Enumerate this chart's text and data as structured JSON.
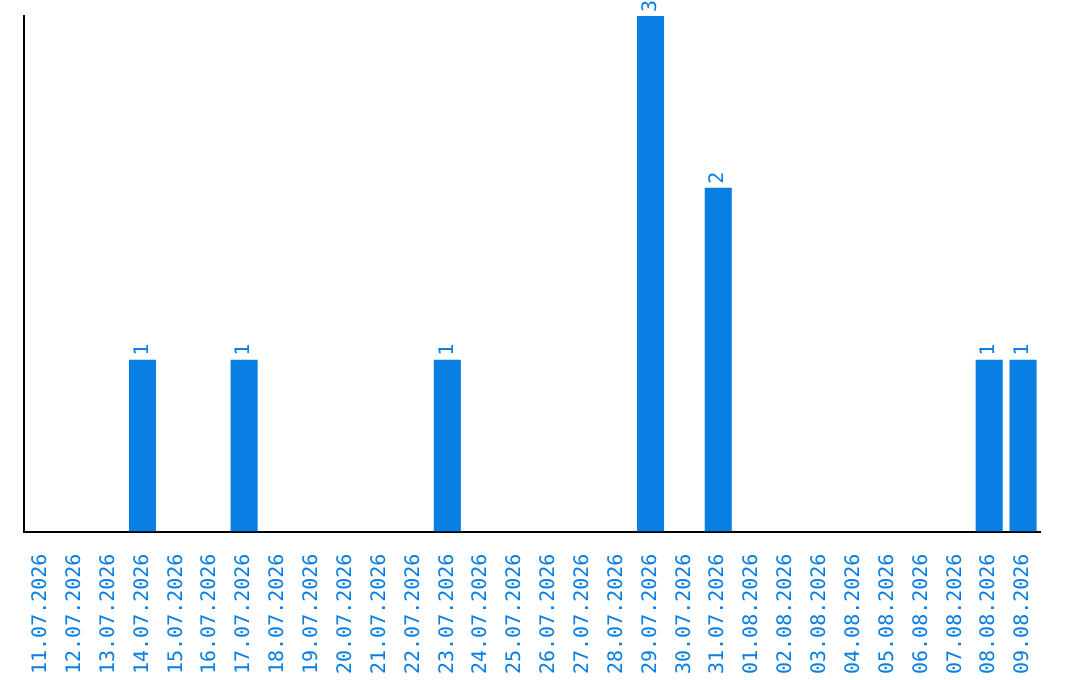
{
  "chart_data": {
    "type": "bar",
    "categories": [
      "11.07.2026",
      "12.07.2026",
      "13.07.2026",
      "14.07.2026",
      "15.07.2026",
      "16.07.2026",
      "17.07.2026",
      "18.07.2026",
      "19.07.2026",
      "20.07.2026",
      "21.07.2026",
      "22.07.2026",
      "23.07.2026",
      "24.07.2026",
      "25.07.2026",
      "26.07.2026",
      "27.07.2026",
      "28.07.2026",
      "29.07.2026",
      "30.07.2026",
      "31.07.2026",
      "01.08.2026",
      "02.08.2026",
      "03.08.2026",
      "04.08.2026",
      "05.08.2026",
      "06.08.2026",
      "07.08.2026",
      "08.08.2026",
      "09.08.2026"
    ],
    "values": [
      0,
      0,
      0,
      1,
      0,
      0,
      1,
      0,
      0,
      0,
      0,
      0,
      1,
      0,
      0,
      0,
      0,
      0,
      3,
      0,
      2,
      0,
      0,
      0,
      0,
      0,
      0,
      0,
      1,
      1
    ],
    "value_labels": [
      null,
      null,
      null,
      "1",
      null,
      null,
      "1",
      null,
      null,
      null,
      null,
      null,
      "1",
      null,
      null,
      null,
      null,
      null,
      "3",
      null,
      "2",
      null,
      null,
      null,
      null,
      null,
      null,
      null,
      "1",
      "1"
    ],
    "color": "#0a7fe3",
    "tick_labels": "x",
    "grid": false,
    "legend": false
  }
}
